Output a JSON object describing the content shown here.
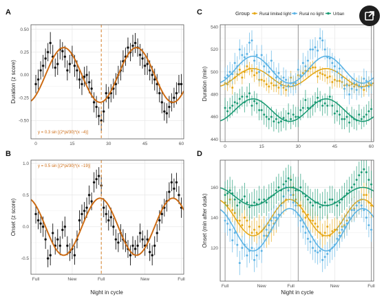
{
  "colors": {
    "fit": "#cc6a12",
    "refline": "#d98a3a",
    "grid_major": "#e6e6e6",
    "grid_minor": "#f2f2f2",
    "panel_border": "#555555",
    "points": "#111111",
    "rural_limited": "#e6a817",
    "rural_no_light": "#5bb3e5",
    "urban": "#1a9a73"
  },
  "icons": {
    "expand": "expand-external-icon"
  },
  "legend": {
    "title": "Group",
    "items": [
      {
        "label": "Rural limited light",
        "color_key": "rural_limited"
      },
      {
        "label": "Rural no light",
        "color_key": "rural_no_light"
      },
      {
        "label": "Urban",
        "color_key": "urban"
      }
    ]
  },
  "chart_data": [
    {
      "panel": "A",
      "type": "scatter",
      "xlabel": "",
      "ylabel": "Duration (z score)",
      "xlim": [
        -2,
        61
      ],
      "ylim": [
        -0.7,
        0.55
      ],
      "xticks": [
        0,
        15,
        30,
        45,
        60
      ],
      "xtick_labels": [
        "0",
        "15",
        "30",
        "45",
        "60"
      ],
      "yticks": [
        -0.5,
        -0.25,
        0,
        0.25,
        0.5
      ],
      "ytick_labels": [
        "-0.50",
        "-0.25",
        "0.00",
        "0.25",
        "0.50"
      ],
      "vline": 27,
      "annotation": "y = 0.3 sin [(2*pi/30)*(x −4)]",
      "fit": {
        "amplitude": 0.3,
        "period": 30,
        "phase": 4,
        "offset": 0
      },
      "x": [
        0,
        1,
        2,
        3,
        4,
        5,
        6,
        7,
        8,
        9,
        10,
        11,
        12,
        13,
        14,
        15,
        16,
        17,
        18,
        19,
        20,
        21,
        22,
        23,
        24,
        25,
        26,
        27,
        28,
        29,
        30,
        31,
        32,
        33,
        34,
        35,
        36,
        37,
        38,
        39,
        40,
        41,
        42,
        43,
        44,
        45,
        46,
        47,
        48,
        49,
        50,
        51,
        52,
        53,
        54,
        55,
        56,
        57,
        58,
        59,
        60
      ],
      "y": [
        -0.1,
        -0.05,
        0.05,
        0.1,
        0.18,
        0.25,
        0.35,
        0.2,
        0.08,
        0.12,
        0.28,
        0.26,
        0.2,
        0.05,
        0.12,
        0.22,
        0.1,
        0.05,
        -0.05,
        -0.1,
        -0.02,
        0.0,
        -0.08,
        -0.15,
        -0.3,
        -0.35,
        -0.45,
        -0.5,
        -0.4,
        -0.2,
        -0.25,
        -0.2,
        -0.15,
        -0.1,
        0.0,
        0.05,
        0.15,
        0.2,
        0.3,
        0.25,
        0.32,
        0.35,
        0.3,
        0.22,
        0.18,
        0.1,
        0.12,
        0.05,
        0.0,
        -0.05,
        -0.1,
        -0.2,
        -0.3,
        -0.4,
        -0.42,
        -0.35,
        -0.3,
        -0.25,
        -0.2,
        -0.1,
        -0.1
      ],
      "err": [
        0.1,
        0.11,
        0.1,
        0.12,
        0.11,
        0.1,
        0.12,
        0.13,
        0.1,
        0.12,
        0.11,
        0.1,
        0.12,
        0.11,
        0.1,
        0.1,
        0.12,
        0.11,
        0.1,
        0.12,
        0.11,
        0.1,
        0.12,
        0.1,
        0.11,
        0.12,
        0.1,
        0.11,
        0.12,
        0.1,
        0.12,
        0.1,
        0.11,
        0.12,
        0.1,
        0.11,
        0.12,
        0.1,
        0.11,
        0.1,
        0.12,
        0.11,
        0.1,
        0.12,
        0.11,
        0.1,
        0.12,
        0.11,
        0.1,
        0.12,
        0.11,
        0.1,
        0.12,
        0.1,
        0.11,
        0.12,
        0.1,
        0.11,
        0.12,
        0.1,
        0.11
      ]
    },
    {
      "panel": "B",
      "type": "scatter",
      "xlabel": "Night in cycle",
      "ylabel": "Onset (z score)",
      "xlim": [
        -2,
        61
      ],
      "ylim": [
        -0.75,
        1.05
      ],
      "xticks": [
        0,
        15,
        27,
        45,
        60
      ],
      "xtick_labels": [
        "Full",
        "New",
        "Full",
        "New",
        "Full"
      ],
      "yticks": [
        -0.5,
        0,
        0.5,
        1
      ],
      "ytick_labels": [
        "-0.5",
        "0.0",
        "0.5",
        "1.0"
      ],
      "vline": 27,
      "annotation": "y = 0.5 sin [(2*pi/30)*(x −19)]",
      "fit": {
        "amplitude": 0.45,
        "period": 30,
        "phase": 19,
        "offset": 0
      },
      "x": [
        0,
        1,
        2,
        3,
        4,
        5,
        6,
        7,
        8,
        9,
        10,
        11,
        12,
        13,
        14,
        15,
        16,
        17,
        18,
        19,
        20,
        21,
        22,
        23,
        24,
        25,
        26,
        27,
        28,
        29,
        30,
        31,
        32,
        33,
        34,
        35,
        36,
        37,
        38,
        39,
        40,
        41,
        42,
        43,
        44,
        45,
        46,
        47,
        48,
        49,
        50,
        51,
        52,
        53,
        54,
        55,
        56,
        57,
        58,
        59,
        60
      ],
      "y": [
        0.2,
        0.1,
        0.05,
        0.0,
        -0.2,
        -0.5,
        -0.45,
        -0.1,
        -0.3,
        -0.2,
        -0.3,
        -0.05,
        0.0,
        -0.3,
        -0.4,
        -0.35,
        -0.45,
        -0.2,
        0.1,
        0.2,
        0.25,
        0.3,
        0.5,
        0.4,
        0.7,
        0.75,
        0.8,
        0.65,
        0.3,
        0.2,
        0.1,
        0.15,
        0.0,
        -0.2,
        -0.25,
        -0.1,
        -0.2,
        -0.25,
        -0.35,
        -0.45,
        -0.3,
        -0.35,
        -0.3,
        -0.1,
        -0.2,
        -0.3,
        -0.2,
        -0.4,
        -0.45,
        -0.3,
        -0.1,
        0.1,
        0.2,
        0.3,
        0.4,
        0.55,
        0.7,
        0.6,
        0.7,
        0.5,
        0.3
      ],
      "err": [
        0.15,
        0.14,
        0.15,
        0.16,
        0.15,
        0.14,
        0.16,
        0.15,
        0.14,
        0.16,
        0.15,
        0.14,
        0.16,
        0.15,
        0.14,
        0.16,
        0.15,
        0.14,
        0.16,
        0.15,
        0.14,
        0.16,
        0.15,
        0.14,
        0.16,
        0.15,
        0.14,
        0.16,
        0.15,
        0.14,
        0.16,
        0.15,
        0.14,
        0.16,
        0.15,
        0.14,
        0.16,
        0.15,
        0.14,
        0.16,
        0.15,
        0.14,
        0.16,
        0.15,
        0.14,
        0.16,
        0.15,
        0.14,
        0.16,
        0.15,
        0.14,
        0.16,
        0.15,
        0.14,
        0.16,
        0.15,
        0.14,
        0.16,
        0.15,
        0.14,
        0.16
      ]
    },
    {
      "panel": "C",
      "type": "scatter",
      "xlabel": "",
      "ylabel": "Duration (min)",
      "xlim": [
        -2,
        61
      ],
      "ylim": [
        438,
        542
      ],
      "xticks": [
        0,
        15,
        30,
        45,
        60
      ],
      "xtick_labels": [
        "0",
        "15",
        "30",
        "45",
        "60"
      ],
      "yticks": [
        440,
        460,
        480,
        500,
        520,
        540
      ],
      "ytick_labels": [
        "440",
        "460",
        "480",
        "500",
        "520",
        "540"
      ],
      "vlines": [
        0,
        30,
        60
      ],
      "series": [
        {
          "name": "Rural limited light",
          "color_key": "rural_limited",
          "fit": {
            "mean": 495,
            "amplitude": 8,
            "phase": 4,
            "period": 30
          },
          "err": 6,
          "y": [
            490,
            489,
            492,
            486,
            495,
            498,
            502,
            495,
            500,
            505,
            503,
            501,
            497,
            499,
            493,
            493,
            492,
            489,
            487,
            490,
            488,
            488,
            486,
            491,
            486,
            484,
            488,
            495,
            490,
            490,
            497,
            496,
            499,
            501,
            501,
            503,
            504,
            504,
            496,
            499,
            498,
            497,
            495,
            496,
            491,
            493,
            492,
            492,
            491,
            488,
            489,
            488,
            489,
            487,
            489,
            487,
            490,
            484,
            488,
            490,
            488
          ]
        },
        {
          "name": "Rural no light",
          "color_key": "rural_no_light",
          "fit": {
            "mean": 502,
            "amplitude": 12,
            "phase": 4,
            "period": 30
          },
          "err": 9,
          "y": [
            495,
            497,
            500,
            498,
            508,
            505,
            520,
            515,
            513,
            516,
            526,
            528,
            510,
            515,
            500,
            515,
            505,
            507,
            500,
            510,
            500,
            495,
            499,
            488,
            495,
            493,
            487,
            490,
            488,
            490,
            502,
            497,
            508,
            505,
            510,
            520,
            520,
            522,
            519,
            530,
            528,
            520,
            513,
            512,
            508,
            505,
            500,
            503,
            495,
            485,
            488,
            480,
            485,
            490,
            484,
            488,
            486,
            494,
            492,
            487,
            490
          ]
        },
        {
          "name": "Urban",
          "color_key": "urban",
          "fit": {
            "mean": 466,
            "amplitude": 10,
            "phase": 4,
            "period": 30
          },
          "err": 9,
          "y": [
            468,
            465,
            468,
            470,
            473,
            472,
            476,
            478,
            473,
            478,
            481,
            470,
            474,
            472,
            466,
            466,
            462,
            460,
            458,
            460,
            456,
            458,
            455,
            456,
            459,
            457,
            463,
            458,
            462,
            460,
            460,
            466,
            468,
            475,
            468,
            468,
            470,
            473,
            477,
            474,
            470,
            472,
            470,
            478,
            470,
            463,
            465,
            462,
            458,
            458,
            460,
            455,
            460,
            458,
            457,
            462,
            458,
            460,
            462,
            465,
            467
          ]
        }
      ]
    },
    {
      "panel": "D",
      "type": "scatter",
      "xlabel": "Night in cycle",
      "ylabel": "Onset (min after dusk)",
      "xlim": [
        -2,
        61
      ],
      "ylim": [
        98,
        178
      ],
      "xticks": [
        0,
        15,
        27,
        45,
        60
      ],
      "xtick_labels": [
        "Full",
        "New",
        "Full",
        "New",
        "Full"
      ],
      "yticks": [
        120,
        140,
        160
      ],
      "ytick_labels": [
        "120",
        "140",
        "160"
      ],
      "vlines": [
        0,
        30,
        60
      ],
      "series": [
        {
          "name": "Rural limited light",
          "color_key": "rural_limited",
          "fit": {
            "mean": 140,
            "amplitude": 12,
            "phase": 19,
            "period": 30
          },
          "err": 8,
          "y": [
            150,
            148,
            152,
            145,
            143,
            138,
            138,
            135,
            140,
            138,
            134,
            130,
            132,
            130,
            134,
            131,
            133,
            128,
            130,
            132,
            136,
            138,
            142,
            148,
            150,
            152,
            158,
            160,
            155,
            152,
            148,
            148,
            144,
            140,
            142,
            138,
            138,
            136,
            134,
            130,
            128,
            130,
            134,
            128,
            131,
            132,
            132,
            130,
            134,
            135,
            138,
            140,
            145,
            146,
            148,
            150,
            152,
            155,
            155,
            150,
            148
          ]
        },
        {
          "name": "Rural no light",
          "color_key": "rural_no_light",
          "fit": {
            "mean": 132,
            "amplitude": 14,
            "phase": 19,
            "period": 30
          },
          "err": 8,
          "y": [
            138,
            136,
            132,
            125,
            130,
            122,
            110,
            120,
            122,
            115,
            118,
            120,
            112,
            115,
            120,
            118,
            128,
            132,
            135,
            138,
            140,
            140,
            142,
            148,
            154,
            160,
            158,
            155,
            150,
            148,
            142,
            138,
            134,
            130,
            126,
            124,
            120,
            118,
            117,
            118,
            112,
            114,
            116,
            118,
            120,
            122,
            126,
            128,
            132,
            134,
            136,
            140,
            145,
            145,
            148,
            150,
            148,
            145,
            140,
            135,
            132
          ]
        },
        {
          "name": "Urban",
          "color_key": "urban",
          "fit": {
            "mean": 154,
            "amplitude": 6,
            "phase": 19,
            "period": 30
          },
          "err": 9,
          "y": [
            155,
            156,
            158,
            156,
            152,
            148,
            150,
            152,
            154,
            150,
            147,
            148,
            150,
            149,
            152,
            150,
            152,
            150,
            153,
            154,
            155,
            158,
            160,
            158,
            162,
            164,
            166,
            165,
            160,
            158,
            158,
            160,
            156,
            154,
            152,
            150,
            148,
            150,
            150,
            147,
            148,
            150,
            148,
            152,
            152,
            150,
            148,
            150,
            152,
            154,
            156,
            158,
            160,
            162,
            165,
            168,
            170,
            172,
            170,
            165,
            162
          ]
        }
      ]
    }
  ]
}
